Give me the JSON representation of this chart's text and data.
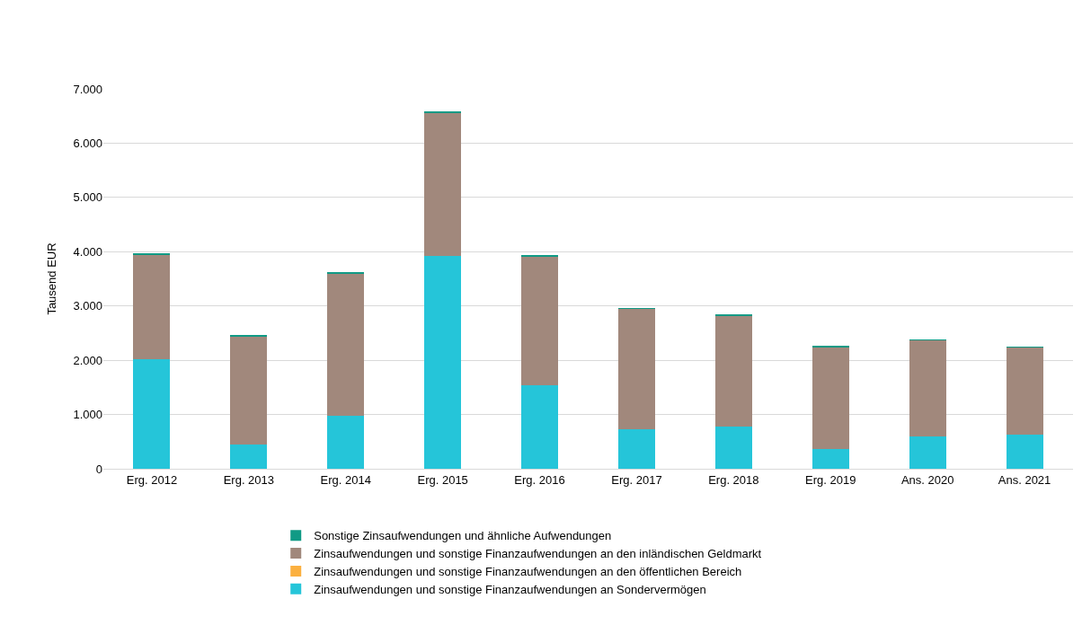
{
  "chart_data": {
    "type": "bar",
    "stacked": true,
    "ylabel": "Tausend EUR",
    "categories": [
      "Erg. 2012",
      "Erg. 2013",
      "Erg. 2014",
      "Erg. 2015",
      "Erg. 2016",
      "Erg. 2017",
      "Erg. 2018",
      "Erg. 2019",
      "Ans. 2020",
      "Ans. 2021"
    ],
    "series": [
      {
        "name": "Zinsaufwendungen und sonstige Finanzaufwendungen an Sondervermögen",
        "color": "#25c5d9",
        "values": [
          2020,
          440,
          975,
          3920,
          1545,
          730,
          770,
          360,
          590,
          630
        ]
      },
      {
        "name": "Zinsaufwendungen und sonstige Finanzaufwendungen an den öffentlichen Bereich",
        "color": "#fbb040",
        "values": [
          0,
          0,
          0,
          0,
          0,
          0,
          0,
          0,
          0,
          0
        ]
      },
      {
        "name": "Zinsaufwendungen und sonstige Finanzaufwendungen an den inländischen Geldmarkt",
        "color": "#a1887c",
        "values": [
          1930,
          2000,
          2625,
          2640,
          2375,
          2220,
          2050,
          1890,
          1780,
          1610
        ]
      },
      {
        "name": "Sonstige Zinsaufwendungen und ähnliche Aufwendungen",
        "color": "#109a85",
        "values": [
          10,
          10,
          10,
          10,
          10,
          10,
          10,
          10,
          10,
          10
        ]
      }
    ],
    "ylim": [
      0,
      7000
    ],
    "yticks": [
      0,
      {
        "value": 1000,
        "label": "1.000"
      },
      {
        "value": 2000,
        "label": "2.000"
      },
      {
        "value": 3000,
        "label": "3.000"
      },
      {
        "value": 4000,
        "label": "4.000"
      },
      {
        "value": 5000,
        "label": "5.000"
      },
      {
        "value": 6000,
        "label": "6.000"
      },
      {
        "value": 7000,
        "label": "7.000"
      }
    ],
    "grid": "y",
    "legend": "bottom"
  }
}
